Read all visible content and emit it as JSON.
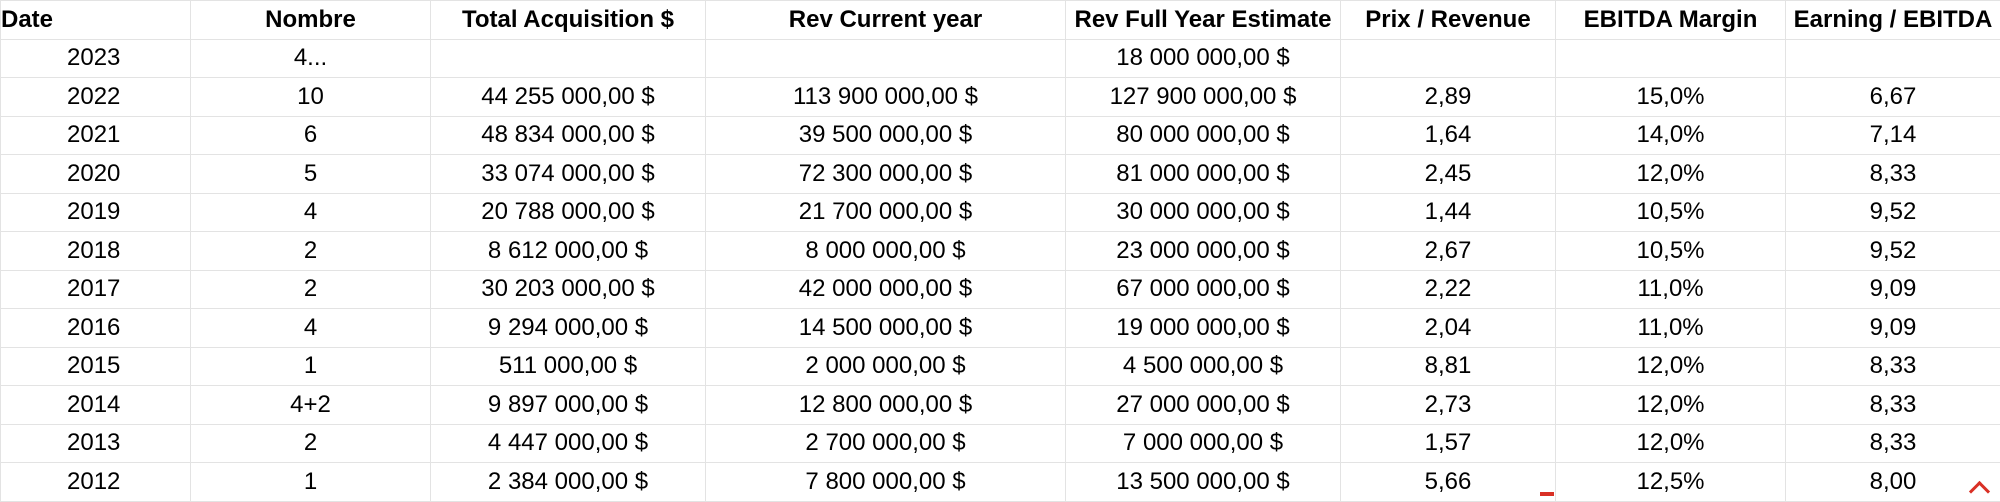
{
  "sheet": {
    "headers": {
      "date": "Date",
      "nombre": "Nombre",
      "total_acquisition": "Total Acquisition $",
      "rev_current_year": "Rev Current year",
      "rev_full_year_estimate": "Rev Full Year Estimate",
      "prix_revenue": "Prix / Revenue",
      "ebitda_margin": "EBITDA Margin",
      "earning_ebitda": "Earning / EBITDA"
    },
    "rows": [
      {
        "date": "2023",
        "nombre": "4...",
        "total_acquisition": "",
        "rev_current_year": "",
        "rev_full_year_estimate": "18 000 000,00 $",
        "prix_revenue": "",
        "ebitda_margin": "",
        "earning_ebitda": ""
      },
      {
        "date": "2022",
        "nombre": "10",
        "total_acquisition": "44 255 000,00 $",
        "rev_current_year": "113 900 000,00 $",
        "rev_full_year_estimate": "127 900 000,00 $",
        "prix_revenue": "2,89",
        "ebitda_margin": "15,0%",
        "earning_ebitda": "6,67"
      },
      {
        "date": "2021",
        "nombre": "6",
        "total_acquisition": "48 834 000,00 $",
        "rev_current_year": "39 500 000,00 $",
        "rev_full_year_estimate": "80 000 000,00 $",
        "prix_revenue": "1,64",
        "ebitda_margin": "14,0%",
        "earning_ebitda": "7,14"
      },
      {
        "date": "2020",
        "nombre": "5",
        "total_acquisition": "33 074 000,00 $",
        "rev_current_year": "72 300 000,00 $",
        "rev_full_year_estimate": "81 000 000,00 $",
        "prix_revenue": "2,45",
        "ebitda_margin": "12,0%",
        "earning_ebitda": "8,33"
      },
      {
        "date": "2019",
        "nombre": "4",
        "total_acquisition": "20 788 000,00 $",
        "rev_current_year": "21 700 000,00 $",
        "rev_full_year_estimate": "30 000 000,00 $",
        "prix_revenue": "1,44",
        "ebitda_margin": "10,5%",
        "earning_ebitda": "9,52"
      },
      {
        "date": "2018",
        "nombre": "2",
        "total_acquisition": "8 612 000,00 $",
        "rev_current_year": "8 000 000,00 $",
        "rev_full_year_estimate": "23 000 000,00 $",
        "prix_revenue": "2,67",
        "ebitda_margin": "10,5%",
        "earning_ebitda": "9,52"
      },
      {
        "date": "2017",
        "nombre": "2",
        "total_acquisition": "30 203 000,00 $",
        "rev_current_year": "42 000 000,00 $",
        "rev_full_year_estimate": "67 000 000,00 $",
        "prix_revenue": "2,22",
        "ebitda_margin": "11,0%",
        "earning_ebitda": "9,09"
      },
      {
        "date": "2016",
        "nombre": "4",
        "total_acquisition": "9 294 000,00 $",
        "rev_current_year": "14 500 000,00 $",
        "rev_full_year_estimate": "19 000 000,00 $",
        "prix_revenue": "2,04",
        "ebitda_margin": "11,0%",
        "earning_ebitda": "9,09"
      },
      {
        "date": "2015",
        "nombre": "1",
        "total_acquisition": "511 000,00 $",
        "rev_current_year": "2 000 000,00 $",
        "rev_full_year_estimate": "4 500 000,00 $",
        "prix_revenue": "8,81",
        "ebitda_margin": "12,0%",
        "earning_ebitda": "8,33"
      },
      {
        "date": "2014",
        "nombre": "4+2",
        "total_acquisition": "9 897 000,00 $",
        "rev_current_year": "12 800 000,00 $",
        "rev_full_year_estimate": "27 000 000,00 $",
        "prix_revenue": "2,73",
        "ebitda_margin": "12,0%",
        "earning_ebitda": "8,33"
      },
      {
        "date": "2013",
        "nombre": "2",
        "total_acquisition": "4 447 000,00 $",
        "rev_current_year": "2 700 000,00 $",
        "rev_full_year_estimate": "7 000 000,00 $",
        "prix_revenue": "1,57",
        "ebitda_margin": "12,0%",
        "earning_ebitda": "8,33"
      },
      {
        "date": "2012",
        "nombre": "1",
        "total_acquisition": "2 384 000,00 $",
        "rev_current_year": "7 800 000,00 $",
        "rev_full_year_estimate": "13 500 000,00 $",
        "prix_revenue": "5,66",
        "ebitda_margin": "12,5%",
        "earning_ebitda": "8,00"
      }
    ]
  },
  "colors": {
    "gridline": "#e3e3e3",
    "note_marker": "#d93025"
  }
}
